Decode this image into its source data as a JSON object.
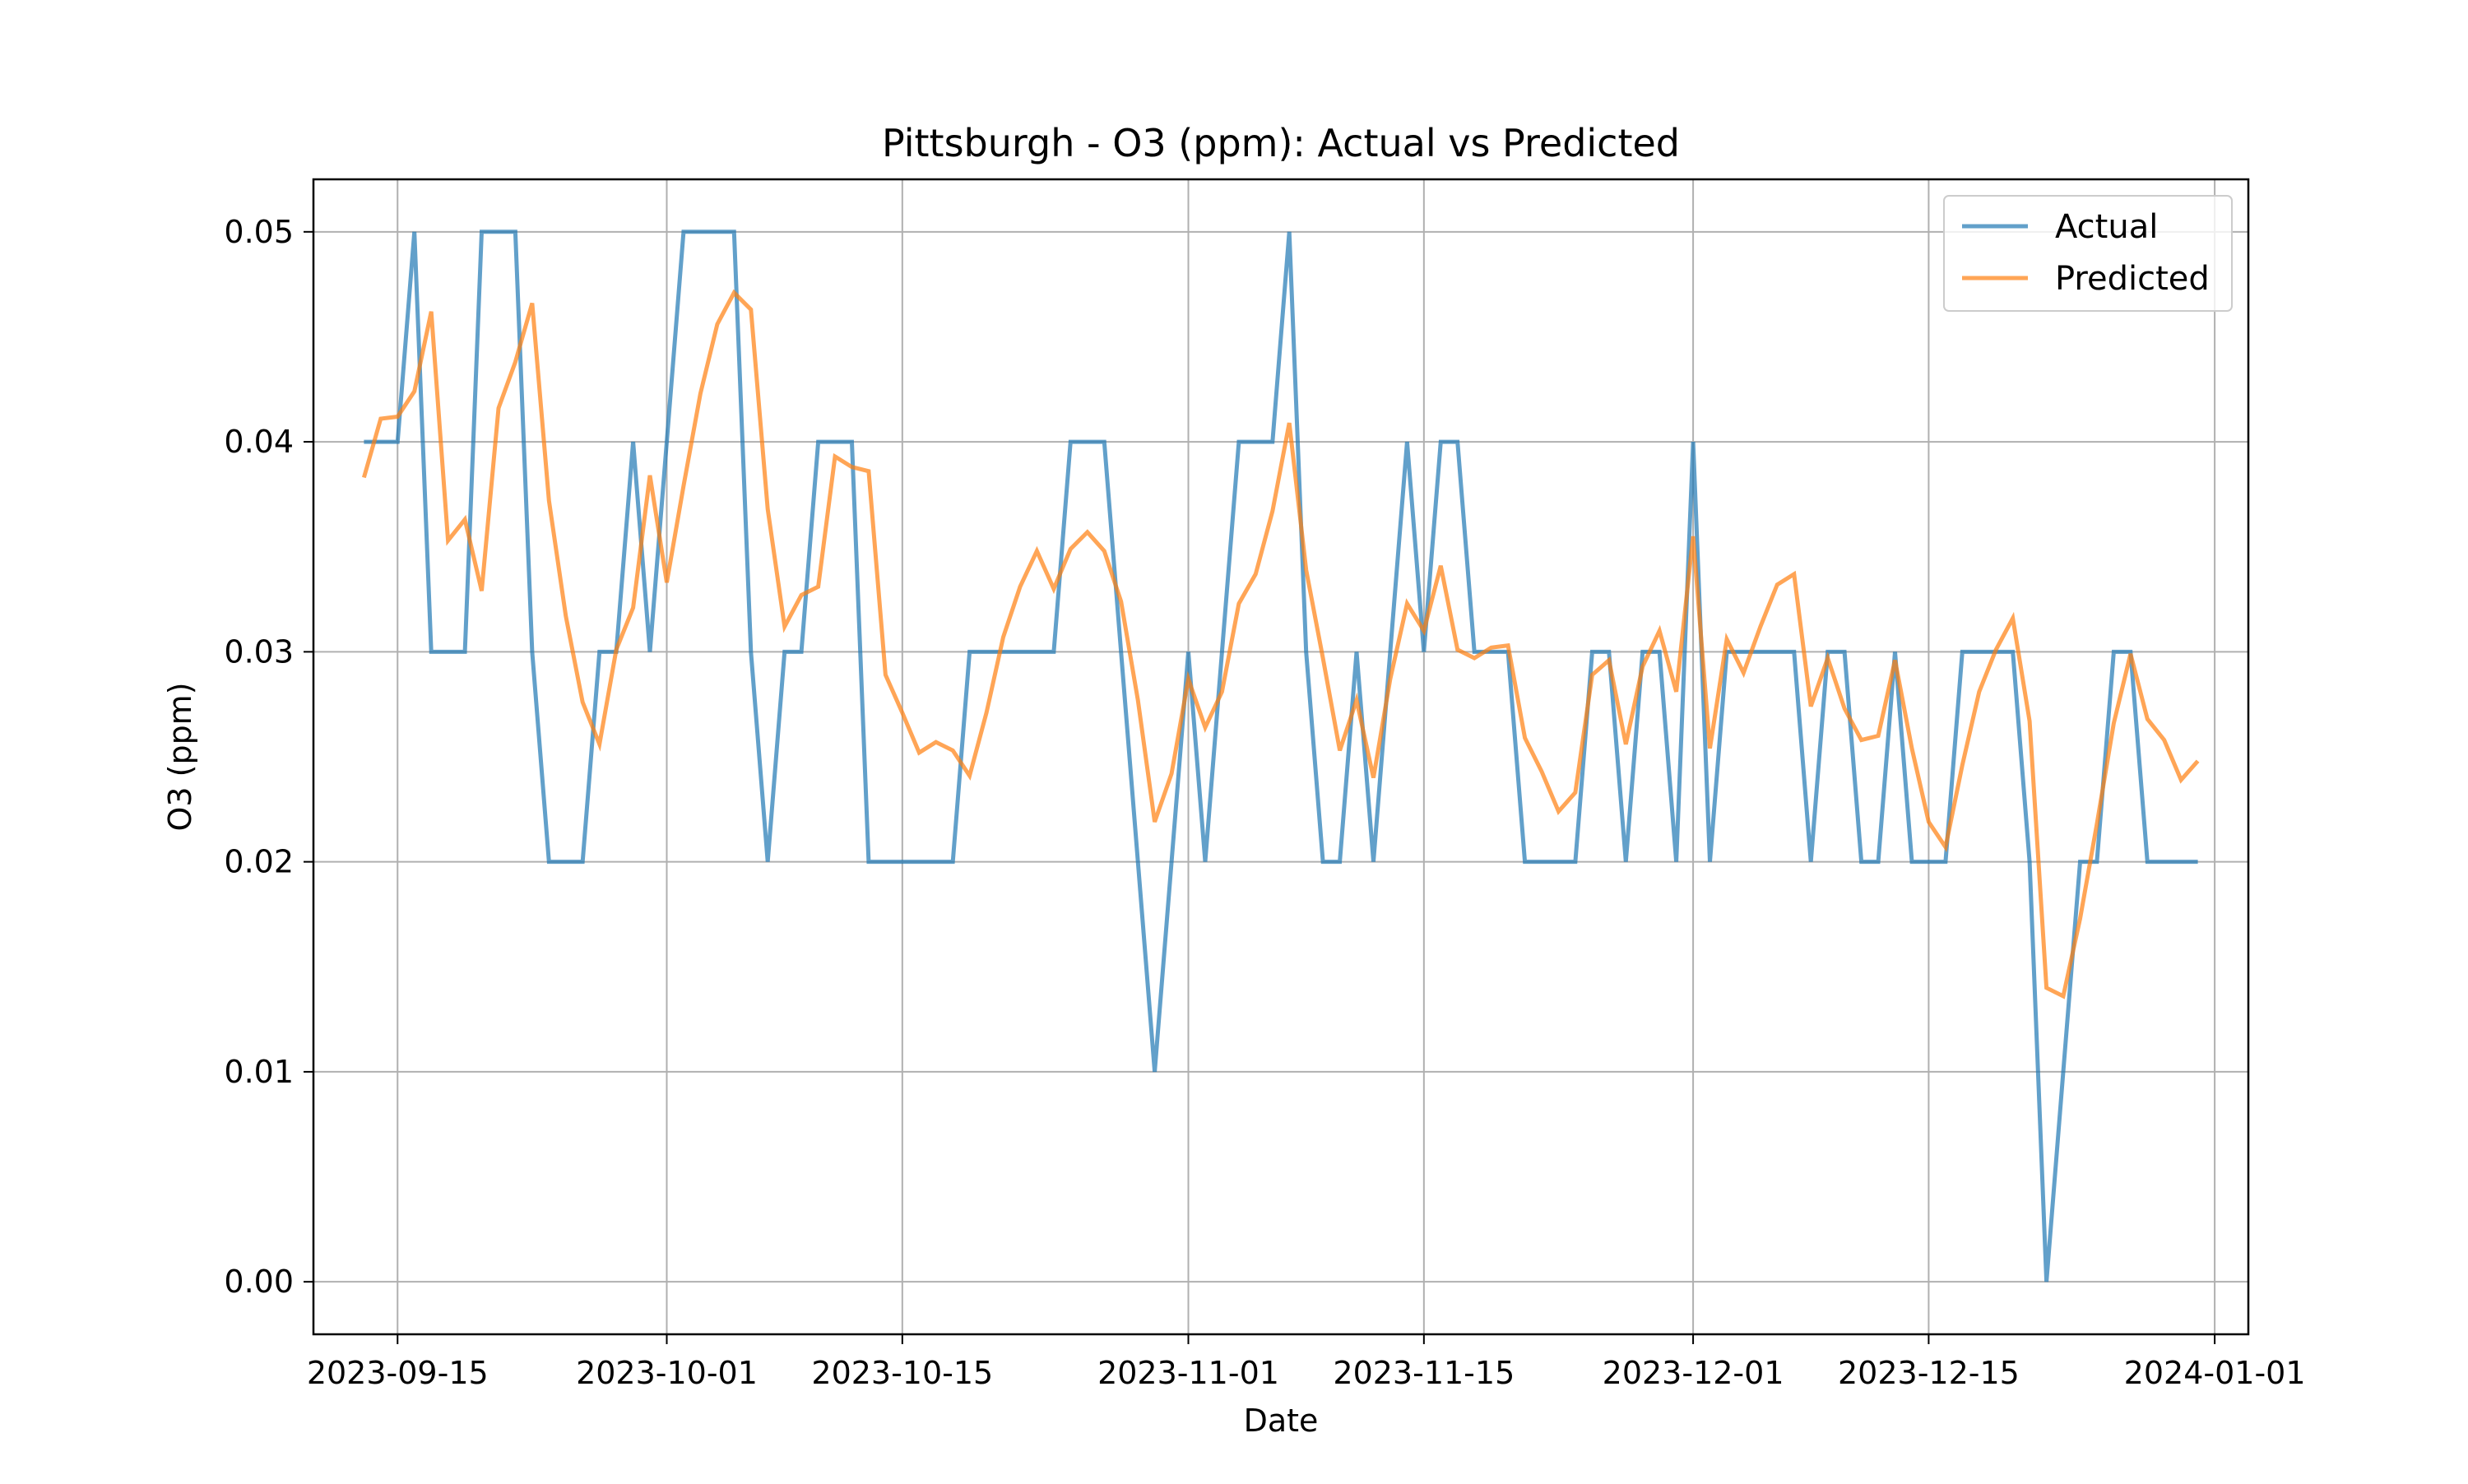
{
  "chart_data": {
    "type": "line",
    "title": "Pittsburgh - O3 (ppm): Actual vs Predicted",
    "xlabel": "Date",
    "ylabel": "O3 (ppm)",
    "x_start": "2023-09-13",
    "x_end": "2023-12-31",
    "xlim": [
      "2023-09-10",
      "2024-01-03"
    ],
    "ylim": [
      -0.0025,
      0.0525
    ],
    "x_ticks": [
      "2023-09-15",
      "2023-10-01",
      "2023-10-15",
      "2023-11-01",
      "2023-11-15",
      "2023-12-01",
      "2023-12-15",
      "2024-01-01"
    ],
    "y_ticks": [
      0.0,
      0.01,
      0.02,
      0.03,
      0.04,
      0.05
    ],
    "y_tick_labels": [
      "0.00",
      "0.01",
      "0.02",
      "0.03",
      "0.04",
      "0.05"
    ],
    "grid": true,
    "legend_position": "upper right",
    "series": [
      {
        "name": "Actual",
        "color": "#1f77b4",
        "values": [
          0.04,
          0.04,
          0.04,
          0.05,
          0.03,
          0.03,
          0.03,
          0.05,
          0.05,
          0.05,
          0.03,
          0.02,
          0.02,
          0.02,
          0.03,
          0.03,
          0.04,
          0.03,
          0.04,
          0.05,
          0.05,
          0.05,
          0.05,
          0.03,
          0.02,
          0.03,
          0.03,
          0.04,
          0.04,
          0.04,
          0.02,
          0.02,
          0.02,
          0.02,
          0.02,
          0.02,
          0.03,
          0.03,
          0.03,
          0.03,
          0.03,
          0.03,
          0.04,
          0.04,
          0.04,
          0.03,
          0.02,
          0.01,
          0.02,
          0.03,
          0.02,
          0.03,
          0.04,
          0.04,
          0.04,
          0.05,
          0.03,
          0.02,
          0.02,
          0.03,
          0.02,
          0.03,
          0.04,
          0.03,
          0.04,
          0.04,
          0.03,
          0.03,
          0.03,
          0.02,
          0.02,
          0.02,
          0.02,
          0.03,
          0.03,
          0.02,
          0.03,
          0.03,
          0.02,
          0.04,
          0.02,
          0.03,
          0.03,
          0.03,
          0.03,
          0.03,
          0.02,
          0.03,
          0.03,
          0.02,
          0.02,
          0.03,
          0.02,
          0.02,
          0.02,
          0.03,
          0.03,
          0.03,
          0.03,
          0.02,
          0.0,
          0.01,
          0.02,
          0.02,
          0.03,
          0.03,
          0.02,
          0.02,
          0.02,
          0.02
        ]
      },
      {
        "name": "Predicted",
        "color": "#ff7f0e",
        "values": [
          0.0383,
          0.0411,
          0.0412,
          0.0424,
          0.0462,
          0.0353,
          0.0363,
          0.0329,
          0.0416,
          0.0438,
          0.0466,
          0.0372,
          0.0317,
          0.0276,
          0.0256,
          0.0301,
          0.0321,
          0.0384,
          0.0333,
          0.0379,
          0.0423,
          0.0456,
          0.0471,
          0.0463,
          0.0368,
          0.0312,
          0.0327,
          0.0331,
          0.0393,
          0.0388,
          0.0386,
          0.0289,
          0.0271,
          0.0252,
          0.0257,
          0.0253,
          0.0241,
          0.0271,
          0.0307,
          0.0331,
          0.0348,
          0.033,
          0.0349,
          0.0357,
          0.0348,
          0.0324,
          0.0277,
          0.0219,
          0.0242,
          0.0287,
          0.0264,
          0.0281,
          0.0323,
          0.0337,
          0.0367,
          0.0409,
          0.0339,
          0.0297,
          0.0253,
          0.0277,
          0.024,
          0.0287,
          0.0323,
          0.031,
          0.0341,
          0.0301,
          0.0297,
          0.0302,
          0.0303,
          0.0259,
          0.0243,
          0.0224,
          0.0233,
          0.0289,
          0.0296,
          0.0256,
          0.0293,
          0.031,
          0.0281,
          0.0355,
          0.0254,
          0.0306,
          0.029,
          0.0312,
          0.0332,
          0.0337,
          0.0274,
          0.0297,
          0.0273,
          0.0258,
          0.026,
          0.0296,
          0.0254,
          0.0219,
          0.0207,
          0.0246,
          0.0281,
          0.0301,
          0.0316,
          0.0267,
          0.014,
          0.0136,
          0.0173,
          0.0218,
          0.0266,
          0.0299,
          0.0268,
          0.0258,
          0.0239,
          0.0248
        ]
      }
    ]
  }
}
